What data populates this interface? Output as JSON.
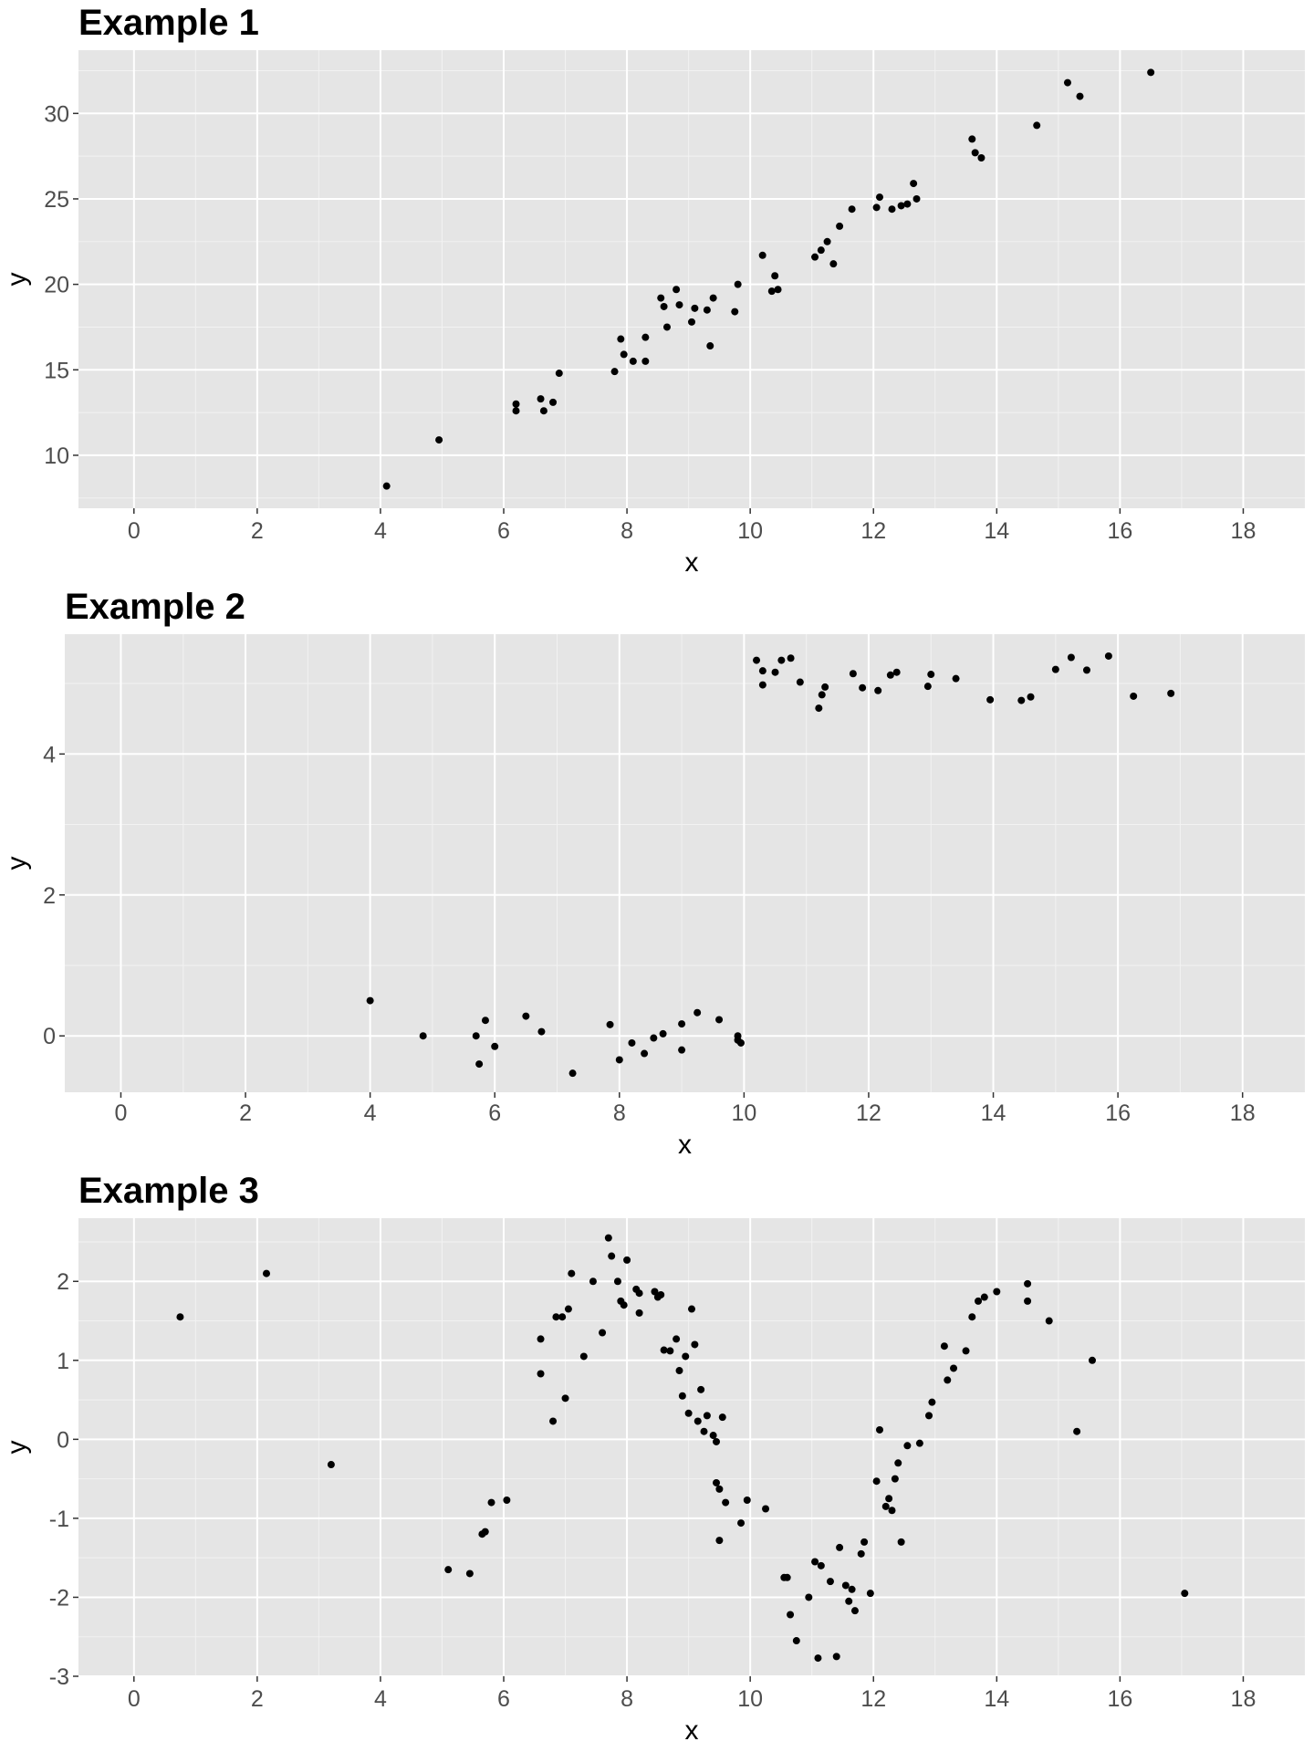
{
  "chart_data": [
    {
      "type": "scatter",
      "title": "Example 1",
      "xlabel": "x",
      "ylabel": "y",
      "xlim": [
        -0.9,
        19.0
      ],
      "ylim": [
        6.9,
        33.7
      ],
      "xticks": [
        0,
        2,
        4,
        6,
        8,
        10,
        12,
        14,
        16,
        18
      ],
      "yticks": [
        10,
        15,
        20,
        25,
        30
      ],
      "ytick_labels": [
        "10",
        "15",
        "20",
        "25",
        "30"
      ],
      "grid": true,
      "x": [
        4.1,
        4.95,
        6.2,
        6.2,
        6.6,
        6.65,
        6.8,
        6.9,
        7.8,
        7.9,
        7.95,
        8.1,
        8.3,
        8.3,
        8.55,
        8.6,
        8.65,
        8.8,
        8.85,
        9.05,
        9.1,
        9.3,
        9.35,
        9.4,
        9.75,
        9.8,
        10.2,
        10.35,
        10.4,
        10.45,
        11.05,
        11.15,
        11.25,
        11.35,
        11.45,
        11.65,
        12.05,
        12.1,
        12.3,
        12.45,
        12.55,
        12.65,
        12.7,
        13.6,
        13.65,
        13.75,
        14.65,
        15.15,
        15.35,
        16.5
      ],
      "y": [
        8.2,
        10.9,
        12.6,
        13.0,
        13.3,
        12.6,
        13.1,
        14.8,
        14.9,
        16.8,
        15.9,
        15.5,
        16.9,
        15.5,
        19.2,
        18.7,
        17.5,
        19.7,
        18.8,
        17.8,
        18.6,
        18.5,
        16.4,
        19.2,
        18.4,
        20.0,
        21.7,
        19.6,
        20.5,
        19.7,
        21.6,
        22.0,
        22.5,
        21.2,
        23.4,
        24.4,
        24.5,
        25.1,
        24.4,
        24.6,
        24.7,
        25.9,
        25.0,
        28.5,
        27.7,
        27.4,
        29.3,
        31.8,
        31.0,
        32.4
      ]
    },
    {
      "type": "scatter",
      "title": "Example 2",
      "xlabel": "x",
      "ylabel": "y",
      "xlim": [
        -0.9,
        19.0
      ],
      "ylim": [
        -0.8,
        5.7
      ],
      "xticks": [
        0,
        2,
        4,
        6,
        8,
        10,
        12,
        14,
        16,
        18
      ],
      "yticks": [
        0,
        2,
        4
      ],
      "ytick_labels": [
        "0",
        "2",
        "4"
      ],
      "grid": true,
      "x": [
        4.0,
        4.85,
        5.7,
        5.75,
        5.85,
        6.0,
        6.5,
        6.75,
        7.25,
        7.85,
        8.0,
        8.2,
        8.4,
        8.55,
        8.7,
        9.0,
        9.0,
        9.25,
        9.6,
        9.9,
        9.9,
        9.95,
        10.2,
        10.3,
        10.3,
        10.5,
        10.6,
        10.75,
        10.9,
        11.2,
        11.25,
        11.3,
        11.75,
        11.9,
        12.15,
        12.35,
        12.45,
        12.95,
        13.0,
        13.4,
        13.95,
        14.45,
        14.6,
        15.0,
        15.25,
        15.5,
        15.85,
        16.25,
        16.85
      ],
      "y": [
        0.5,
        0.0,
        0.0,
        -0.4,
        0.22,
        -0.15,
        0.28,
        0.06,
        -0.53,
        0.16,
        -0.34,
        -0.1,
        -0.25,
        -0.03,
        0.03,
        0.17,
        -0.2,
        0.33,
        0.23,
        0.0,
        -0.06,
        -0.1,
        5.33,
        5.18,
        4.98,
        5.16,
        5.33,
        5.36,
        5.02,
        4.65,
        4.84,
        4.95,
        5.14,
        4.94,
        4.9,
        5.12,
        5.16,
        4.96,
        5.13,
        5.07,
        4.77,
        4.76,
        4.81,
        5.2,
        5.37,
        5.19,
        5.39,
        4.82,
        4.86
      ]
    },
    {
      "type": "scatter",
      "title": "Example 3",
      "xlabel": "x",
      "ylabel": "y",
      "xlim": [
        -0.9,
        19.0
      ],
      "ylim": [
        -3.0,
        2.8
      ],
      "xticks": [
        0,
        2,
        4,
        6,
        8,
        10,
        12,
        14,
        16,
        18
      ],
      "yticks": [
        -3,
        -2,
        -1,
        0,
        1,
        2
      ],
      "ytick_labels": [
        "-3",
        "-2",
        "-1",
        "0",
        "1",
        "2"
      ],
      "grid": true,
      "x": [
        0.75,
        2.15,
        3.2,
        5.1,
        5.45,
        5.65,
        5.7,
        5.8,
        6.05,
        6.6,
        6.6,
        6.8,
        6.85,
        6.95,
        7.0,
        7.05,
        7.1,
        7.3,
        7.45,
        7.6,
        7.7,
        7.75,
        7.85,
        7.9,
        7.95,
        8.0,
        8.15,
        8.2,
        8.2,
        8.45,
        8.5,
        8.55,
        8.6,
        8.7,
        8.8,
        8.85,
        8.9,
        8.95,
        9.0,
        9.05,
        9.1,
        9.15,
        9.2,
        9.25,
        9.3,
        9.4,
        9.45,
        9.45,
        9.5,
        9.5,
        9.55,
        9.6,
        9.85,
        9.95,
        10.25,
        10.55,
        10.6,
        10.65,
        10.75,
        10.95,
        11.05,
        11.1,
        11.15,
        11.3,
        11.4,
        11.45,
        11.55,
        11.6,
        11.65,
        11.7,
        11.8,
        11.85,
        11.95,
        12.05,
        12.1,
        12.2,
        12.25,
        12.3,
        12.35,
        12.4,
        12.45,
        12.55,
        12.75,
        12.9,
        12.95,
        13.15,
        13.2,
        13.3,
        13.5,
        13.6,
        13.7,
        13.8,
        14.0,
        14.5,
        14.5,
        14.85,
        15.3,
        15.55,
        17.05
      ],
      "y": [
        1.55,
        2.1,
        -0.32,
        -1.65,
        -1.7,
        -1.2,
        -1.17,
        -0.8,
        -0.77,
        1.27,
        0.83,
        0.23,
        1.55,
        1.55,
        0.52,
        1.65,
        2.1,
        1.05,
        2.0,
        1.35,
        2.55,
        2.32,
        2.0,
        1.75,
        1.7,
        2.27,
        1.9,
        1.85,
        1.6,
        1.87,
        1.8,
        1.83,
        1.13,
        1.12,
        1.27,
        0.87,
        0.55,
        1.05,
        0.33,
        1.65,
        1.2,
        0.23,
        0.63,
        0.1,
        0.3,
        0.05,
        -0.03,
        -0.55,
        -1.28,
        -0.63,
        0.28,
        -0.8,
        -1.06,
        -0.77,
        -0.88,
        -1.75,
        -1.75,
        -2.22,
        -2.55,
        -2.0,
        -1.55,
        -2.77,
        -1.6,
        -1.8,
        -2.75,
        -1.37,
        -1.85,
        -2.05,
        -1.9,
        -2.17,
        -1.45,
        -1.3,
        -1.95,
        -0.53,
        0.12,
        -0.85,
        -0.75,
        -0.9,
        -0.5,
        -0.3,
        -1.3,
        -0.08,
        -0.05,
        0.3,
        0.47,
        1.18,
        0.75,
        0.9,
        1.12,
        1.55,
        1.75,
        1.8,
        1.87,
        1.97,
        1.75,
        1.5,
        0.1,
        1.0,
        -1.95
      ]
    }
  ]
}
